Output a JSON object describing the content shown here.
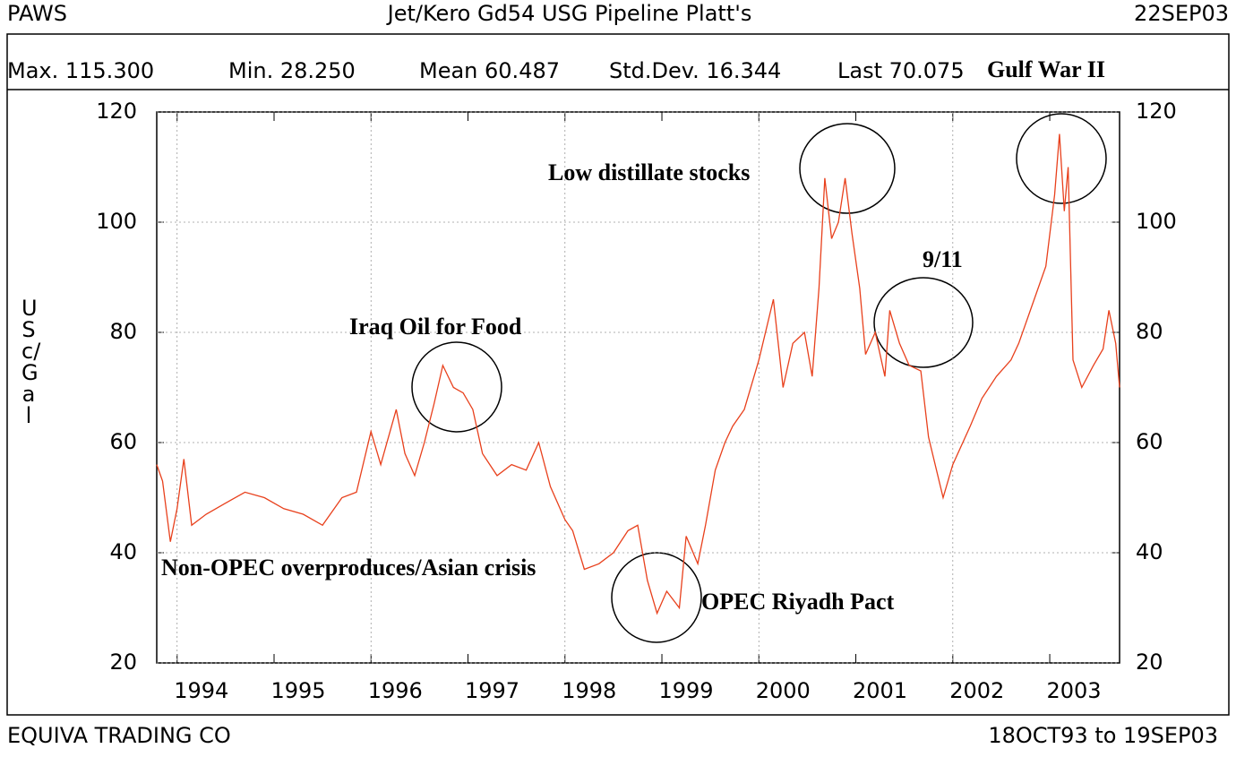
{
  "chart_data": {
    "type": "line",
    "header_left": "PAWS",
    "title": "Jet/Kero Gd54 USG Pipeline Platt's",
    "header_right": "22SEP03",
    "stats": [
      "Max. 115.300",
      "Min. 28.250",
      "Mean 60.487",
      "Std.Dev. 16.344",
      "Last 70.075"
    ],
    "y_label": "USc/Gal",
    "footer_left": "EQUIVA TRADING CO",
    "footer_right": "18OCT93 to 19SEP03",
    "annotations": [
      "Gulf War II",
      "Low distillate stocks",
      "9/11",
      "Iraq Oil for Food",
      "Non-OPEC overproduces/Asian crisis",
      "OPEC Riyadh Pact"
    ],
    "xlim": [
      1993.79,
      2003.72
    ],
    "xticks": [
      1994,
      1995,
      1996,
      1997,
      1998,
      1999,
      2000,
      2001,
      2002,
      2003
    ],
    "ylim": [
      20,
      120
    ],
    "yticks": [
      20,
      40,
      60,
      80,
      100,
      120
    ],
    "grid": true,
    "series": [
      {
        "name": "Jet/Kero Gd54 USG Pipeline Platt's",
        "color": "#e8401c",
        "x": [
          1993.79,
          1993.85,
          1993.93,
          1994.0,
          1994.07,
          1994.15,
          1994.3,
          1994.5,
          1994.7,
          1994.9,
          1995.1,
          1995.3,
          1995.5,
          1995.7,
          1995.85,
          1996.0,
          1996.1,
          1996.26,
          1996.35,
          1996.45,
          1996.55,
          1996.65,
          1996.74,
          1996.85,
          1996.95,
          1997.05,
          1997.15,
          1997.3,
          1997.45,
          1997.6,
          1997.73,
          1997.85,
          1998.0,
          1998.08,
          1998.2,
          1998.35,
          1998.5,
          1998.65,
          1998.75,
          1998.85,
          1998.95,
          1999.05,
          1999.18,
          1999.25,
          1999.37,
          1999.45,
          1999.55,
          1999.65,
          1999.73,
          1999.85,
          2000.0,
          2000.15,
          2000.25,
          2000.35,
          2000.47,
          2000.55,
          2000.62,
          2000.68,
          2000.75,
          2000.82,
          2000.89,
          2000.96,
          2001.04,
          2001.1,
          2001.2,
          2001.3,
          2001.35,
          2001.45,
          2001.55,
          2001.67,
          2001.75,
          2001.9,
          2002.0,
          2002.18,
          2002.3,
          2002.45,
          2002.6,
          2002.68,
          2002.8,
          2002.96,
          2003.05,
          2003.1,
          2003.15,
          2003.19,
          2003.24,
          2003.33,
          2003.45,
          2003.55,
          2003.61,
          2003.68,
          2003.72
        ],
        "values": [
          56,
          53,
          42,
          48,
          57,
          45,
          47,
          49,
          51,
          50,
          48,
          47,
          45,
          50,
          51,
          62,
          56,
          66,
          58,
          54,
          60,
          67,
          74,
          70,
          69,
          66,
          58,
          54,
          56,
          55,
          60,
          52,
          46,
          44,
          37,
          38,
          40,
          44,
          45,
          35,
          29,
          33,
          30,
          43,
          38,
          45,
          55,
          60,
          63,
          66,
          75,
          86,
          70,
          78,
          80,
          72,
          88,
          108,
          97,
          100,
          108,
          98,
          88,
          76,
          80,
          72,
          84,
          78,
          74,
          73,
          61,
          50,
          56,
          63,
          68,
          72,
          75,
          78,
          84,
          92,
          105,
          116,
          102,
          110,
          75,
          70,
          74,
          77,
          84,
          78,
          70
        ]
      }
    ]
  }
}
